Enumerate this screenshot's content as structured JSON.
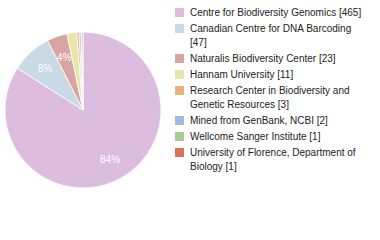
{
  "chart_data": {
    "type": "pie",
    "categories": [
      "Centre for Biodiversity Genomics [465]",
      "Canadian Centre for DNA Barcoding [47]",
      "Naturalis Biodiversity Center [23]",
      "Hannam University [11]",
      "Research Center in Biodiversity and Genetic Resources [3]",
      "Mined from GenBank, NCBI [2]",
      "Wellcome Sanger Institute [1]",
      "University of Florence, Department of Biology [1]"
    ],
    "values": [
      84.1,
      8.5,
      4.2,
      2.0,
      0.5,
      0.4,
      0.2,
      0.2
    ],
    "value_labels": [
      "84%",
      "8%",
      "4%",
      null,
      null,
      null,
      null,
      null
    ],
    "data_labels": true,
    "legend": "right",
    "colors": [
      "#dcbde0",
      "#c9d9e6",
      "#d8a5a2",
      "#e6e6a8",
      "#e9b27c",
      "#a2badb",
      "#a6cc8e",
      "#d9735d"
    ]
  }
}
